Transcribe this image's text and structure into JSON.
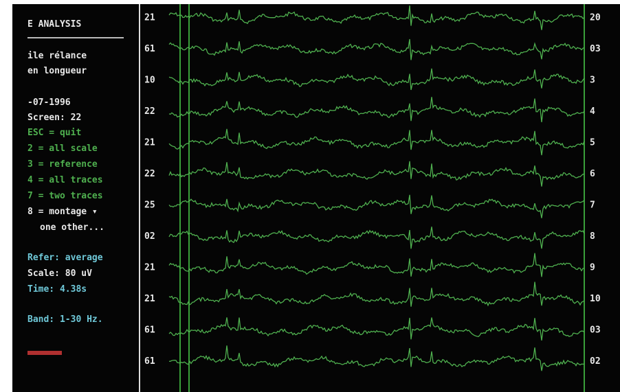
{
  "sidebar": {
    "header": [
      "E ANALYSIS",
      "ile rélance",
      "en longueur"
    ],
    "info": [
      "-07-1996",
      "Screen: 22"
    ],
    "menu": [
      "ESC = quit",
      "2 = all scale",
      "3 = reference",
      "4 = all traces",
      "7 = two traces",
      "8 = montage ▾",
      "one other..."
    ],
    "status": [
      "Refer: average",
      "Scale: 80 uV",
      "Time: 4.38s",
      "Band: 1-30 Hz."
    ]
  },
  "channels": {
    "left": [
      "21",
      "61",
      "10",
      "22",
      "21",
      "22",
      "25",
      "02",
      "21",
      "21",
      "61",
      "61"
    ],
    "right": [
      "20",
      "03",
      "3",
      "4",
      "5",
      "6",
      "7",
      "8",
      "9",
      "10",
      "03",
      "02"
    ]
  }
}
